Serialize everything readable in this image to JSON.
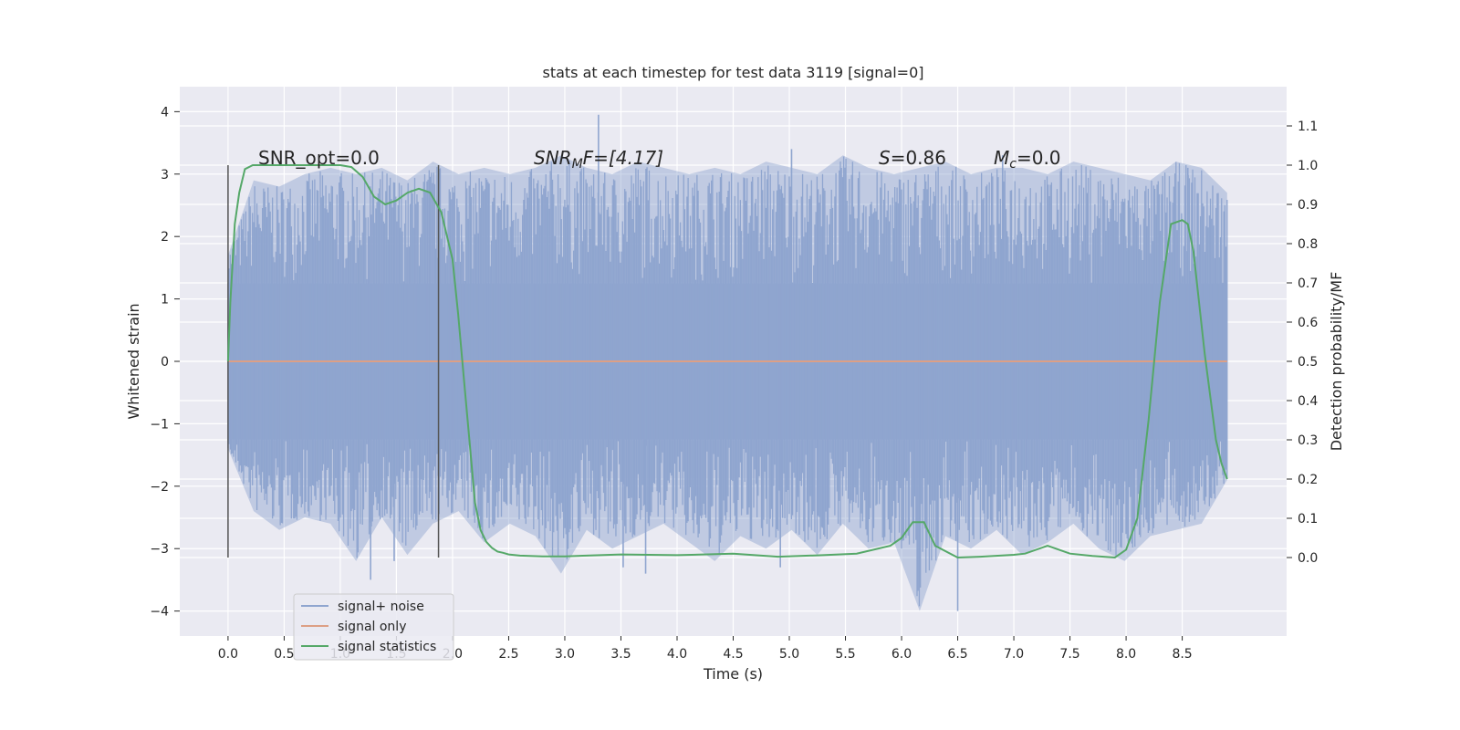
{
  "chart_data": {
    "type": "line",
    "title": "stats at each timestep for test data 3119 [signal=0]",
    "xlabel": "Time (s)",
    "ylabel": "Whitened strain",
    "ylabel_right": "Detection probability/MF",
    "xlim": [
      -0.43,
      9.43
    ],
    "ylim": [
      -4.4,
      4.4
    ],
    "ylim_right": [
      -0.2,
      1.2
    ],
    "x_ticks": [
      "0.0",
      "0.5",
      "1.0",
      "1.5",
      "2.0",
      "2.5",
      "3.0",
      "3.5",
      "4.0",
      "4.5",
      "5.0",
      "5.5",
      "6.0",
      "6.5",
      "7.0",
      "7.5",
      "8.0",
      "8.5"
    ],
    "y_ticks": [
      "4",
      "3",
      "2",
      "1",
      "0",
      "−1",
      "−2",
      "−3",
      "−4"
    ],
    "y_right_ticks": [
      "1.1",
      "1.0",
      "0.9",
      "0.8",
      "0.7",
      "0.6",
      "0.5",
      "0.4",
      "0.3",
      "0.2",
      "0.1",
      "0.0"
    ],
    "grid": true,
    "legend_position": "lower-left",
    "annotations": {
      "snr_opt": "SNR_opt=0.0",
      "snr_mf_base": "SNR",
      "snr_mf_sub": "M",
      "snr_mf_rest": "F=[4.17]",
      "s_var": "S",
      "s_val": "=0.86",
      "mc_var": "M",
      "mc_sub": "c",
      "mc_val": "=0.0"
    },
    "vertical_markers_x": [
      0.0,
      1.875
    ],
    "series": [
      {
        "name": "signal+ noise",
        "color": "#8fa5cf",
        "x_range": [
          0.0,
          8.9
        ],
        "envelope_upper": [
          1.7,
          2.9,
          2.8,
          3.0,
          3.1,
          3.0,
          3.1,
          2.9,
          3.2,
          3.0,
          3.1,
          3.0,
          3.1,
          3.3,
          3.1,
          3.0,
          3.2,
          3.1,
          3.0,
          3.1,
          3.0,
          3.2,
          3.1,
          3.0,
          3.3,
          3.1,
          3.0,
          3.1,
          3.2,
          3.0,
          3.1,
          3.1,
          3.0,
          3.2,
          3.1,
          3.0,
          2.9,
          3.2,
          3.1,
          2.7
        ],
        "envelope_lower": [
          -1.4,
          -2.4,
          -2.7,
          -2.5,
          -2.6,
          -3.2,
          -2.5,
          -3.1,
          -2.6,
          -2.4,
          -2.9,
          -2.6,
          -2.8,
          -3.4,
          -2.7,
          -3.0,
          -2.8,
          -2.6,
          -2.9,
          -3.2,
          -2.8,
          -3.0,
          -2.7,
          -3.1,
          -2.6,
          -3.0,
          -2.9,
          -4.0,
          -2.8,
          -3.0,
          -2.7,
          -3.1,
          -2.9,
          -2.6,
          -3.0,
          -3.2,
          -2.8,
          -2.7,
          -2.6,
          -1.9
        ],
        "core_band": [
          -1.25,
          1.25
        ],
        "spikes": [
          [
            1.27,
            -3.5
          ],
          [
            1.48,
            -3.2
          ],
          [
            3.3,
            3.95
          ],
          [
            3.52,
            -3.3
          ],
          [
            3.72,
            -3.4
          ],
          [
            5.02,
            3.4
          ],
          [
            4.92,
            -3.3
          ],
          [
            6.5,
            -4.0
          ],
          [
            6.9,
            3.3
          ],
          [
            8.55,
            3.1
          ]
        ]
      },
      {
        "name": "signal only",
        "color": "#dd9f85",
        "x": [
          0.0,
          8.9
        ],
        "y": [
          0.0,
          0.0
        ]
      },
      {
        "name": "signal statistics",
        "color": "#55a868",
        "axis": "right",
        "x": [
          0.0,
          0.02,
          0.06,
          0.1,
          0.15,
          0.22,
          0.3,
          0.5,
          0.7,
          1.0,
          1.1,
          1.2,
          1.3,
          1.4,
          1.5,
          1.6,
          1.7,
          1.8,
          1.9,
          2.0,
          2.05,
          2.1,
          2.15,
          2.2,
          2.25,
          2.3,
          2.35,
          2.4,
          2.45,
          2.5,
          2.6,
          2.8,
          3.0,
          3.5,
          4.0,
          4.5,
          4.9,
          5.3,
          5.6,
          5.9,
          6.0,
          6.1,
          6.2,
          6.3,
          6.5,
          6.7,
          7.0,
          7.1,
          7.3,
          7.5,
          7.7,
          7.9,
          8.0,
          8.1,
          8.2,
          8.3,
          8.4,
          8.5,
          8.55,
          8.6,
          8.7,
          8.8,
          8.85,
          8.9
        ],
        "y": [
          0.5,
          0.65,
          0.85,
          0.93,
          0.99,
          1.0,
          1.0,
          1.0,
          1.0,
          1.0,
          0.995,
          0.97,
          0.92,
          0.9,
          0.91,
          0.93,
          0.94,
          0.93,
          0.88,
          0.76,
          0.62,
          0.46,
          0.3,
          0.14,
          0.07,
          0.04,
          0.025,
          0.015,
          0.012,
          0.008,
          0.005,
          0.003,
          0.003,
          0.008,
          0.006,
          0.01,
          0.002,
          0.006,
          0.01,
          0.03,
          0.05,
          0.09,
          0.09,
          0.03,
          0.0,
          0.002,
          0.007,
          0.01,
          0.03,
          0.01,
          0.004,
          0.0,
          0.02,
          0.1,
          0.35,
          0.65,
          0.85,
          0.86,
          0.85,
          0.78,
          0.52,
          0.3,
          0.24,
          0.2
        ]
      }
    ]
  }
}
